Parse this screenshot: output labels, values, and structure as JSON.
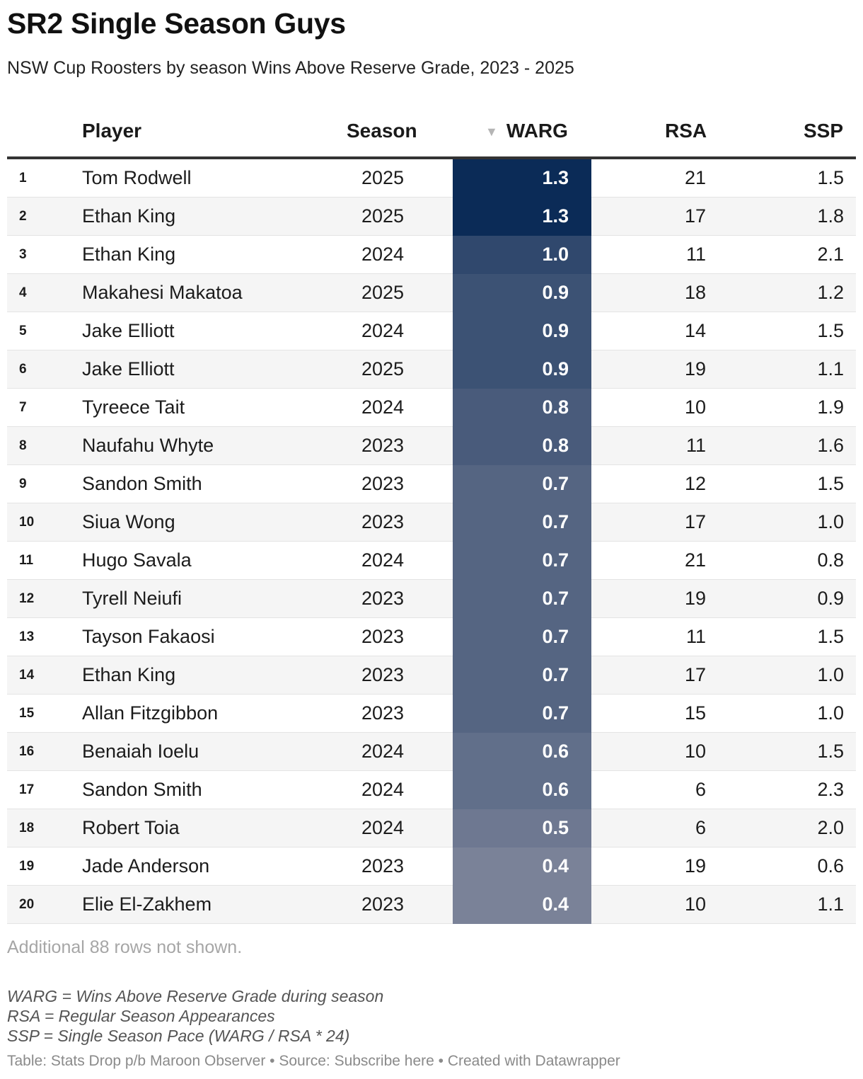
{
  "title": "SR2 Single Season Guys",
  "subtitle": "NSW Cup Roosters by season Wins Above Reserve Grade, 2023 - 2025",
  "colors": {
    "warg_max": "#0b2b57",
    "warg_min": "#7a8298",
    "row_alt": "#f5f5f5",
    "sort_arrow": "#b5b5b5"
  },
  "chart_data": {
    "type": "table",
    "columns": [
      "Player",
      "Season",
      "WARG",
      "RSA",
      "SSP"
    ],
    "sort_column": "WARG",
    "sort_order": "descending",
    "rows": [
      {
        "rank": "1",
        "player": "Tom Rodwell",
        "season": "2025",
        "warg": "1.3",
        "rsa": "21",
        "ssp": "1.5"
      },
      {
        "rank": "2",
        "player": "Ethan King",
        "season": "2025",
        "warg": "1.3",
        "rsa": "17",
        "ssp": "1.8"
      },
      {
        "rank": "3",
        "player": "Ethan King",
        "season": "2024",
        "warg": "1.0",
        "rsa": "11",
        "ssp": "2.1"
      },
      {
        "rank": "4",
        "player": "Makahesi Makatoa",
        "season": "2025",
        "warg": "0.9",
        "rsa": "18",
        "ssp": "1.2"
      },
      {
        "rank": "5",
        "player": "Jake Elliott",
        "season": "2024",
        "warg": "0.9",
        "rsa": "14",
        "ssp": "1.5"
      },
      {
        "rank": "6",
        "player": "Jake Elliott",
        "season": "2025",
        "warg": "0.9",
        "rsa": "19",
        "ssp": "1.1"
      },
      {
        "rank": "7",
        "player": "Tyreece Tait",
        "season": "2024",
        "warg": "0.8",
        "rsa": "10",
        "ssp": "1.9"
      },
      {
        "rank": "8",
        "player": "Naufahu Whyte",
        "season": "2023",
        "warg": "0.8",
        "rsa": "11",
        "ssp": "1.6"
      },
      {
        "rank": "9",
        "player": "Sandon Smith",
        "season": "2023",
        "warg": "0.7",
        "rsa": "12",
        "ssp": "1.5"
      },
      {
        "rank": "10",
        "player": "Siua Wong",
        "season": "2023",
        "warg": "0.7",
        "rsa": "17",
        "ssp": "1.0"
      },
      {
        "rank": "11",
        "player": "Hugo Savala",
        "season": "2024",
        "warg": "0.7",
        "rsa": "21",
        "ssp": "0.8"
      },
      {
        "rank": "12",
        "player": "Tyrell Neiufi",
        "season": "2023",
        "warg": "0.7",
        "rsa": "19",
        "ssp": "0.9"
      },
      {
        "rank": "13",
        "player": "Tayson Fakaosi",
        "season": "2023",
        "warg": "0.7",
        "rsa": "11",
        "ssp": "1.5"
      },
      {
        "rank": "14",
        "player": "Ethan King",
        "season": "2023",
        "warg": "0.7",
        "rsa": "17",
        "ssp": "1.0"
      },
      {
        "rank": "15",
        "player": "Allan Fitzgibbon",
        "season": "2023",
        "warg": "0.7",
        "rsa": "15",
        "ssp": "1.0"
      },
      {
        "rank": "16",
        "player": "Benaiah Ioelu",
        "season": "2024",
        "warg": "0.6",
        "rsa": "10",
        "ssp": "1.5"
      },
      {
        "rank": "17",
        "player": "Sandon Smith",
        "season": "2024",
        "warg": "0.6",
        "rsa": "6",
        "ssp": "2.3"
      },
      {
        "rank": "18",
        "player": "Robert Toia",
        "season": "2024",
        "warg": "0.5",
        "rsa": "6",
        "ssp": "2.0"
      },
      {
        "rank": "19",
        "player": "Jade Anderson",
        "season": "2023",
        "warg": "0.4",
        "rsa": "19",
        "ssp": "0.6"
      },
      {
        "rank": "20",
        "player": "Elie El-Zakhem",
        "season": "2023",
        "warg": "0.4",
        "rsa": "10",
        "ssp": "1.1"
      }
    ]
  },
  "more_rows_note": "Additional 88 rows not shown.",
  "notes": [
    "WARG = Wins Above Reserve Grade during season",
    "RSA = Regular Season Appearances",
    "SSP = Single Season Pace (WARG / RSA * 24)"
  ],
  "footer": "Table: Stats Drop p/b Maroon Observer • Source: Subscribe here • Created with Datawrapper"
}
